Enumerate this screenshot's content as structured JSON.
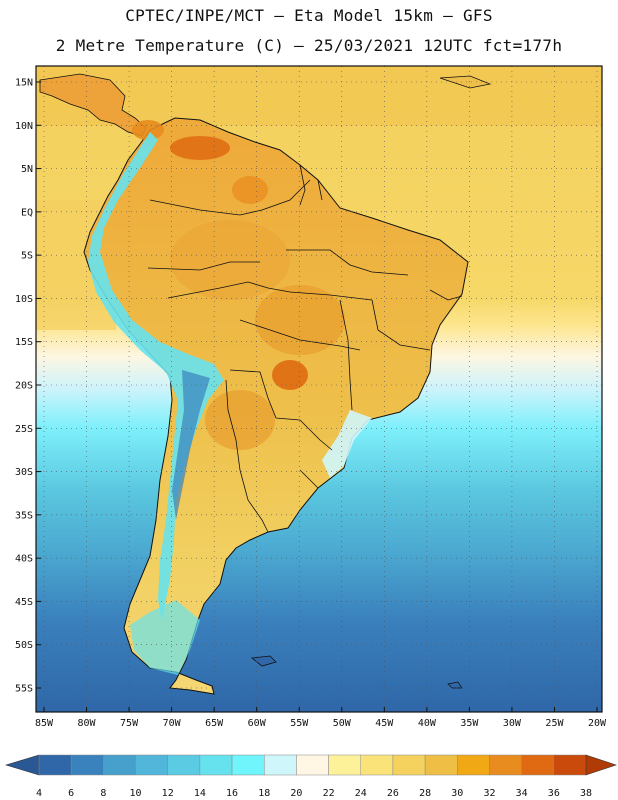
{
  "header": {
    "title_line1": "CPTEC/INPE/MCT –  Eta Model 15km – GFS",
    "title_line2": "2 Metre Temperature (C) – 25/03/2021 12UTC fct=177h"
  },
  "map": {
    "lat_labels": [
      "15N",
      "10N",
      "5N",
      "EQ",
      "5S",
      "10S",
      "15S",
      "20S",
      "25S",
      "30S",
      "35S",
      "40S",
      "45S",
      "50S",
      "55S"
    ],
    "lon_labels": [
      "85W",
      "80W",
      "75W",
      "70W",
      "65W",
      "60W",
      "55W",
      "50W",
      "45W",
      "40W",
      "35W",
      "30W",
      "25W",
      "20W"
    ]
  },
  "colorbar": {
    "labels": [
      "4",
      "6",
      "8",
      "10",
      "12",
      "14",
      "16",
      "18",
      "20",
      "22",
      "24",
      "26",
      "28",
      "30",
      "32",
      "34",
      "36",
      "38"
    ],
    "colors": [
      "#2f67a8",
      "#3a82bd",
      "#47a0cc",
      "#52b6db",
      "#5bcbe3",
      "#66e2ee",
      "#6ff5fb",
      "#cff6fb",
      "#fff7e3",
      "#fdf299",
      "#fae47a",
      "#f5d25d",
      "#efbf45",
      "#f0a915",
      "#e88c1f",
      "#df6a12",
      "#c94a0b"
    ],
    "end_low": "#2a5894",
    "end_high": "#b13b07"
  }
}
